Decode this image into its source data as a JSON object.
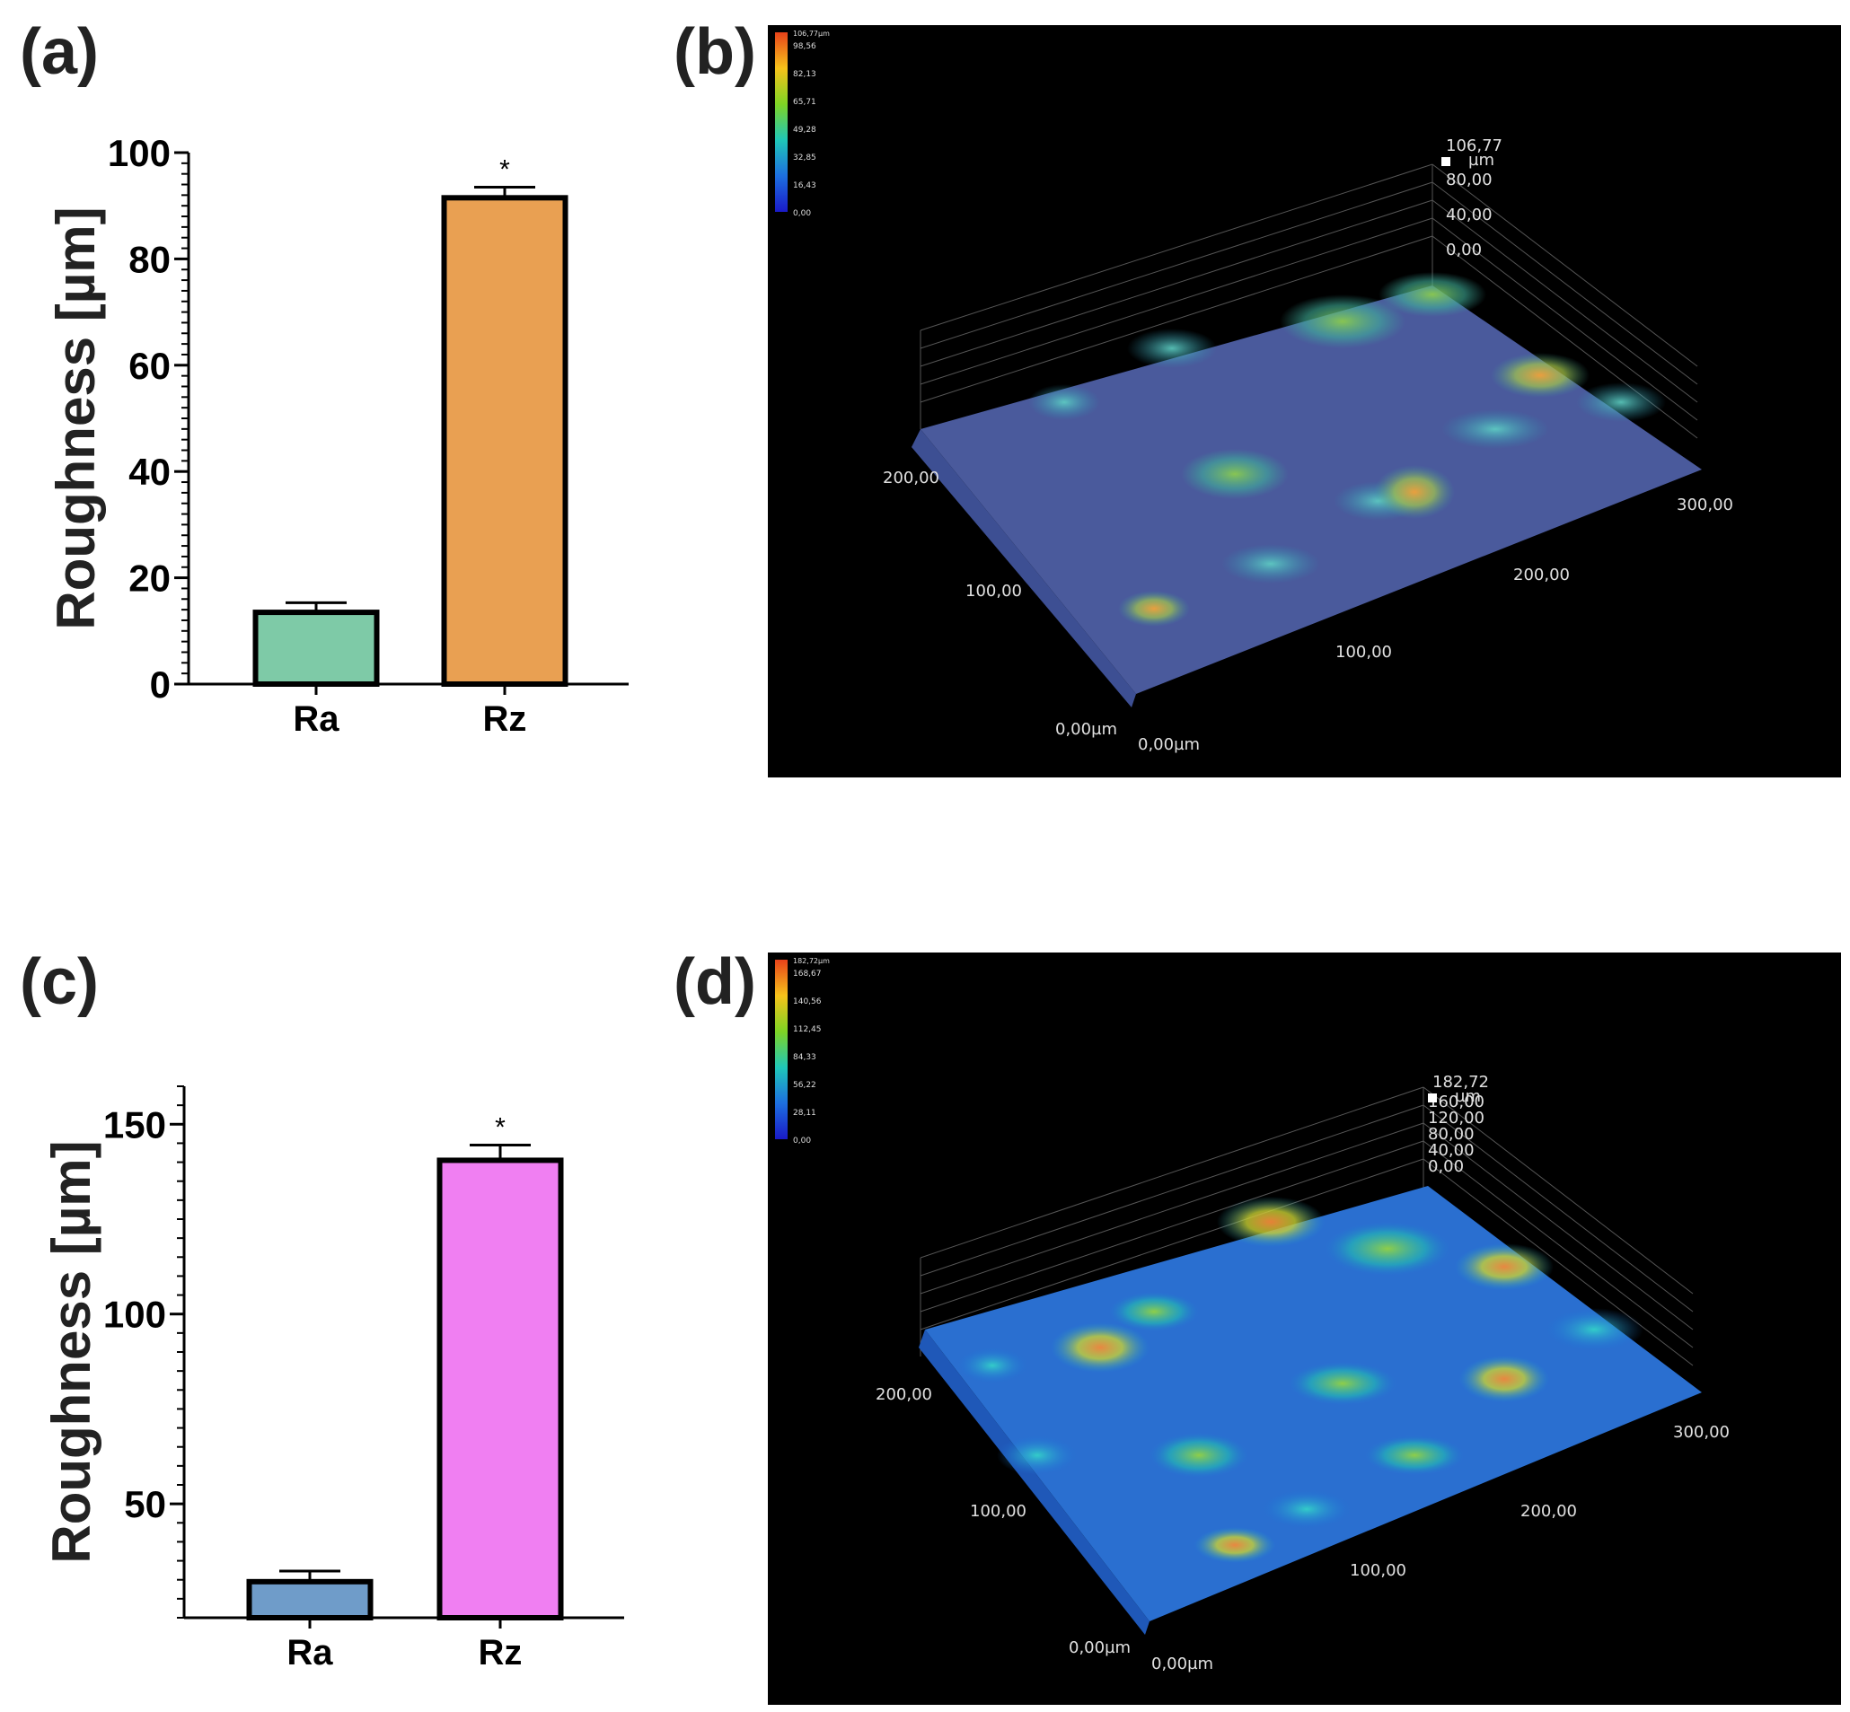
{
  "panel_labels": {
    "a": "(a)",
    "b": "(b)",
    "c": "(c)",
    "d": "(d)"
  },
  "chart_data": [
    {
      "panel": "(a)",
      "type": "bar",
      "categories": [
        "Ra",
        "Rz"
      ],
      "values": [
        13.5,
        91.5
      ],
      "errors": [
        1.8,
        2.0
      ],
      "colors": [
        "#7ecaa7",
        "#e9a052"
      ],
      "significance": [
        "",
        "*"
      ],
      "ylabel": "Roughness [µm]",
      "xlabel": "",
      "ylim": [
        0,
        100
      ],
      "yticks": [
        0,
        20,
        40,
        60,
        80,
        100
      ],
      "minor_step": 2
    },
    {
      "panel": "(c)",
      "type": "bar",
      "categories": [
        "Ra",
        "Rz"
      ],
      "values": [
        29.5,
        140.5
      ],
      "errors": [
        2.8,
        4.0
      ],
      "colors": [
        "#6f9cc9",
        "#f07ff2"
      ],
      "significance": [
        "",
        "*"
      ],
      "ylabel": "Roughness [µm]",
      "xlabel": "",
      "ylim": [
        20,
        160
      ],
      "yticks": [
        50,
        100,
        150
      ],
      "minor_step": 5
    }
  ],
  "surface_b": {
    "colorbar": [
      "106,77µm",
      "98,56",
      "82,13",
      "65,71",
      "49,28",
      "32,85",
      "16,43",
      "0,00"
    ],
    "z_axis": [
      "106,77",
      "µm",
      "80,00",
      "40,00",
      "0,00"
    ],
    "x_axis": [
      "100,00",
      "200,00",
      "300,00"
    ],
    "y_axis": [
      "200,00",
      "100,00"
    ],
    "origin_y": "0,00µm",
    "origin_x": "0,00µm"
  },
  "surface_d": {
    "colorbar": [
      "182,72µm",
      "168,67",
      "140,56",
      "112,45",
      "84,33",
      "56,22",
      "28,11",
      "0,00"
    ],
    "z_axis": [
      "182,72",
      "µm",
      "160,00",
      "120,00",
      "80,00",
      "40,00",
      "0,00"
    ],
    "x_axis": [
      "100,00",
      "200,00",
      "300,00"
    ],
    "y_axis": [
      "200,00",
      "100,00"
    ],
    "origin_y": "0,00µm",
    "origin_x": "0,00µm"
  }
}
